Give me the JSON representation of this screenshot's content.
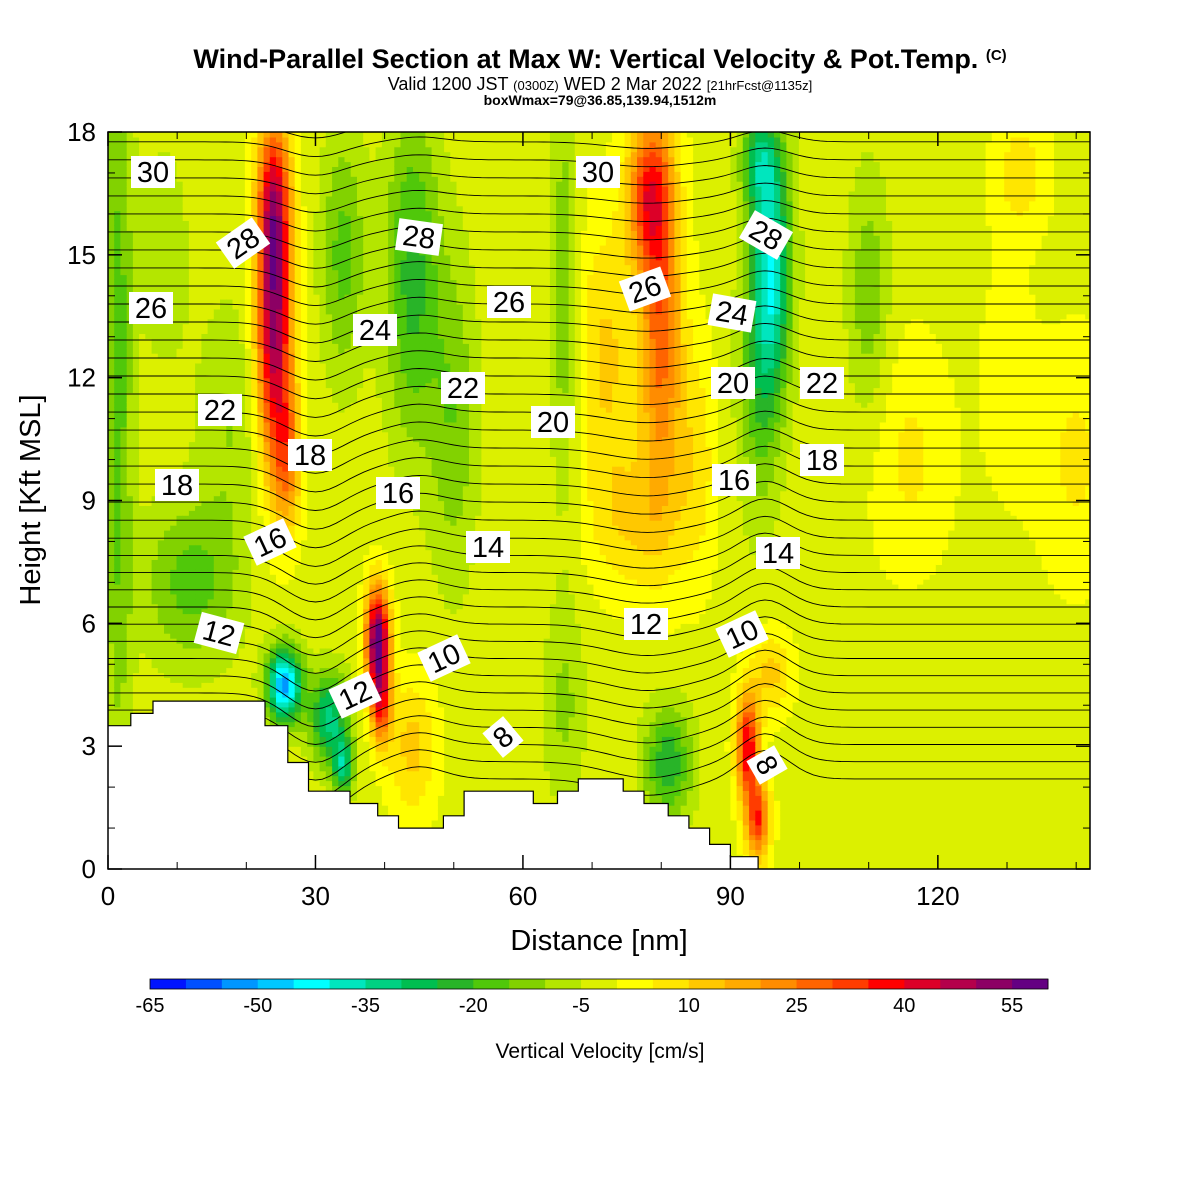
{
  "header": {
    "title": "Wind-Parallel Section at Max W: Vertical Velocity & Pot.Temp.",
    "title_mark": "(C)",
    "subtitle_a": "Valid 1200 JST",
    "subtitle_b": "(0300Z)",
    "subtitle_c": "WED 2 Mar 2022",
    "subtitle_d": "[21hrFcst@1135z]",
    "box_info": "boxWmax=79@36.85,139.94,1512m"
  },
  "chart_data": {
    "type": "heatmap",
    "xlabel": "Distance [nm]",
    "ylabel": "Height [Kft MSL]",
    "xlim": [
      0,
      142
    ],
    "ylim": [
      0,
      18
    ],
    "x_ticks": [
      "0",
      "30",
      "60",
      "90",
      "120"
    ],
    "y_ticks": [
      "0",
      "3",
      "6",
      "9",
      "12",
      "15",
      "18"
    ],
    "colorbar": {
      "title": "Vertical Velocity [cm/s]",
      "labels": [
        "-65",
        "-50",
        "-35",
        "-20",
        "-5",
        "10",
        "25",
        "40",
        "55"
      ],
      "range": [
        -65,
        60
      ],
      "step": 5,
      "colors": [
        "#0014ff",
        "#0050ff",
        "#0096ff",
        "#00c8ff",
        "#00ffff",
        "#00e6be",
        "#00d282",
        "#00be50",
        "#28b428",
        "#50c80a",
        "#82d200",
        "#b4e600",
        "#dcf000",
        "#ffff00",
        "#ffe600",
        "#ffc800",
        "#ffaa00",
        "#ff8c00",
        "#ff6400",
        "#ff3c00",
        "#ff0000",
        "#dc0028",
        "#b4004b",
        "#8c0064",
        "#640082"
      ]
    },
    "theta_contour_labels": [
      "30",
      "30",
      "28",
      "28",
      "28",
      "26",
      "26",
      "26",
      "24",
      "24",
      "22",
      "22",
      "22",
      "20",
      "20",
      "18",
      "18",
      "18",
      "16",
      "16",
      "16",
      "14",
      "14",
      "12",
      "12",
      "12",
      "10",
      "10",
      "8",
      "8"
    ],
    "terrain_kft": [
      [
        0,
        3.5
      ],
      [
        3.3,
        3.5
      ],
      [
        3.3,
        3.8
      ],
      [
        6.5,
        3.8
      ],
      [
        6.5,
        4.1
      ],
      [
        22.7,
        4.1
      ],
      [
        22.7,
        3.5
      ],
      [
        26,
        3.5
      ],
      [
        26,
        2.6
      ],
      [
        29,
        2.6
      ],
      [
        29,
        1.9
      ],
      [
        35,
        1.9
      ],
      [
        35,
        1.6
      ],
      [
        39,
        1.6
      ],
      [
        39,
        1.3
      ],
      [
        42,
        1.3
      ],
      [
        42,
        1.0
      ],
      [
        48.5,
        1.0
      ],
      [
        48.5,
        1.3
      ],
      [
        51.5,
        1.3
      ],
      [
        51.5,
        1.9
      ],
      [
        61.5,
        1.9
      ],
      [
        61.5,
        1.6
      ],
      [
        65,
        1.6
      ],
      [
        65,
        1.9
      ],
      [
        68,
        1.9
      ],
      [
        68,
        2.2
      ],
      [
        74.5,
        2.2
      ],
      [
        74.5,
        1.9
      ],
      [
        77.5,
        1.9
      ],
      [
        77.5,
        1.6
      ],
      [
        81,
        1.6
      ],
      [
        81,
        1.3
      ],
      [
        84,
        1.3
      ],
      [
        84,
        1.0
      ],
      [
        87,
        1.0
      ],
      [
        87,
        0.6
      ],
      [
        90,
        0.6
      ],
      [
        90,
        0.3
      ],
      [
        94,
        0.3
      ],
      [
        94,
        0
      ]
    ]
  }
}
